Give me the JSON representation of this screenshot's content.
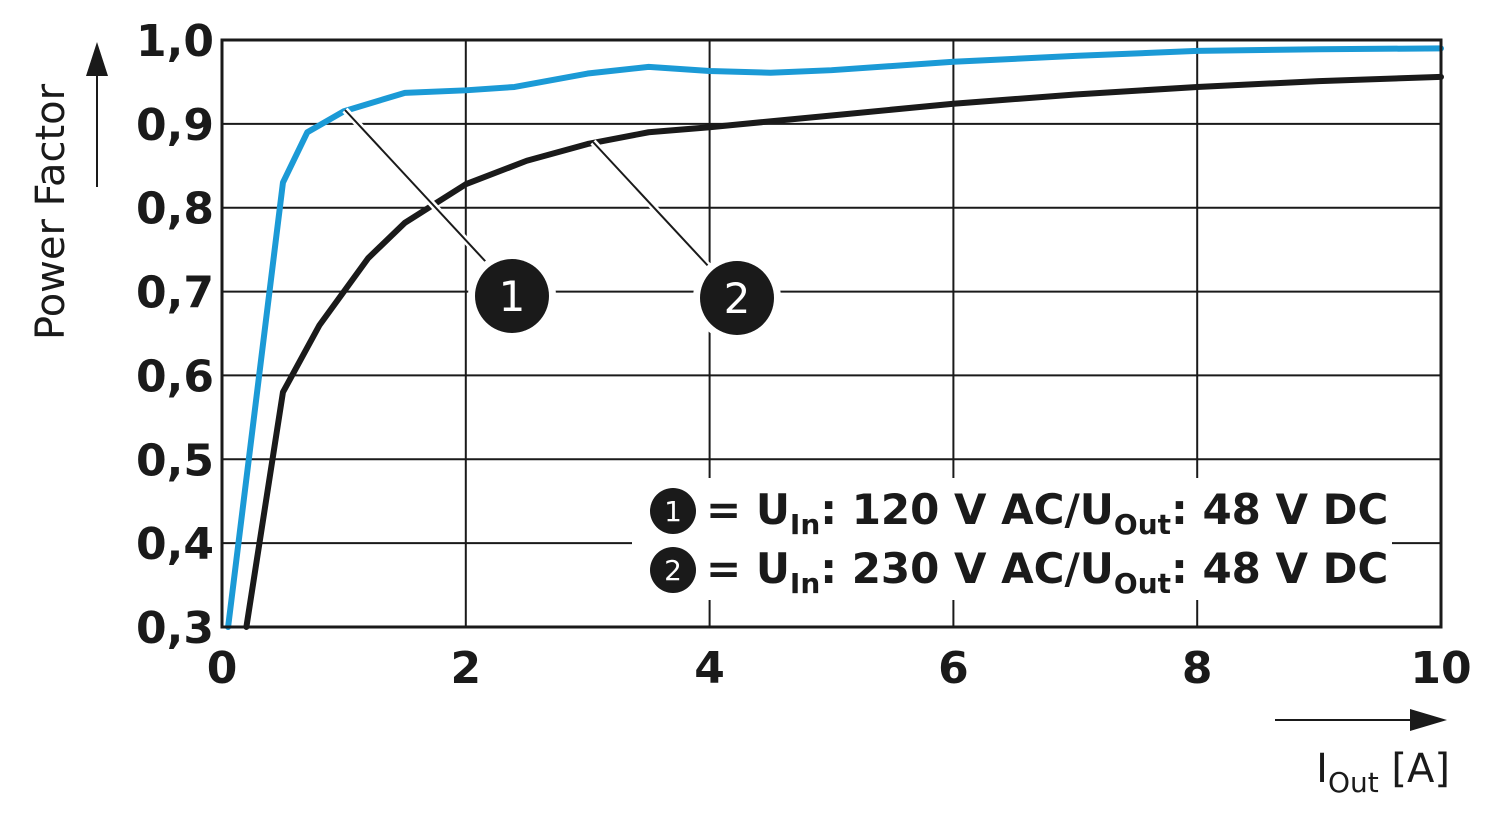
{
  "chart_data": {
    "type": "line",
    "ylabel": "Power Factor",
    "xlabel_parts": [
      "I",
      "Out",
      " [A]"
    ],
    "xlim": [
      0,
      10
    ],
    "ylim": [
      0.3,
      1.0
    ],
    "xticks": [
      0,
      2,
      4,
      6,
      8,
      10
    ],
    "yticks": [
      {
        "value": 0.3,
        "label": "0,3"
      },
      {
        "value": 0.4,
        "label": "0,4"
      },
      {
        "value": 0.5,
        "label": "0,5"
      },
      {
        "value": 0.6,
        "label": "0,6"
      },
      {
        "value": 0.7,
        "label": "0,7"
      },
      {
        "value": 0.8,
        "label": "0,8"
      },
      {
        "value": 0.9,
        "label": "0,9"
      },
      {
        "value": 1.0,
        "label": "1,0"
      }
    ],
    "grid": true,
    "series": [
      {
        "name": "1",
        "color": "#1b9ad6",
        "legend_parts": [
          "= U",
          "In",
          ": 120 V AC/U",
          "Out",
          ": 48 V DC"
        ],
        "x": [
          0.05,
          0.5,
          0.7,
          1.0,
          1.5,
          2.0,
          2.4,
          3.0,
          3.5,
          4.0,
          4.5,
          5.0,
          6.0,
          7.0,
          8.0,
          9.0,
          10.0
        ],
        "values": [
          0.3,
          0.83,
          0.89,
          0.915,
          0.937,
          0.94,
          0.944,
          0.96,
          0.968,
          0.963,
          0.961,
          0.964,
          0.974,
          0.981,
          0.987,
          0.989,
          0.99
        ]
      },
      {
        "name": "2",
        "color": "#1a1a1a",
        "legend_parts": [
          "= U",
          "In",
          ": 230 V AC/U",
          "Out",
          ": 48 V DC"
        ],
        "x": [
          0.2,
          0.5,
          0.8,
          1.2,
          1.5,
          2.0,
          2.5,
          3.0,
          3.5,
          4.0,
          5.0,
          6.0,
          7.0,
          8.0,
          9.0,
          10.0
        ],
        "values": [
          0.3,
          0.58,
          0.66,
          0.74,
          0.782,
          0.828,
          0.856,
          0.876,
          0.89,
          0.896,
          0.91,
          0.924,
          0.935,
          0.944,
          0.951,
          0.956
        ]
      }
    ]
  }
}
